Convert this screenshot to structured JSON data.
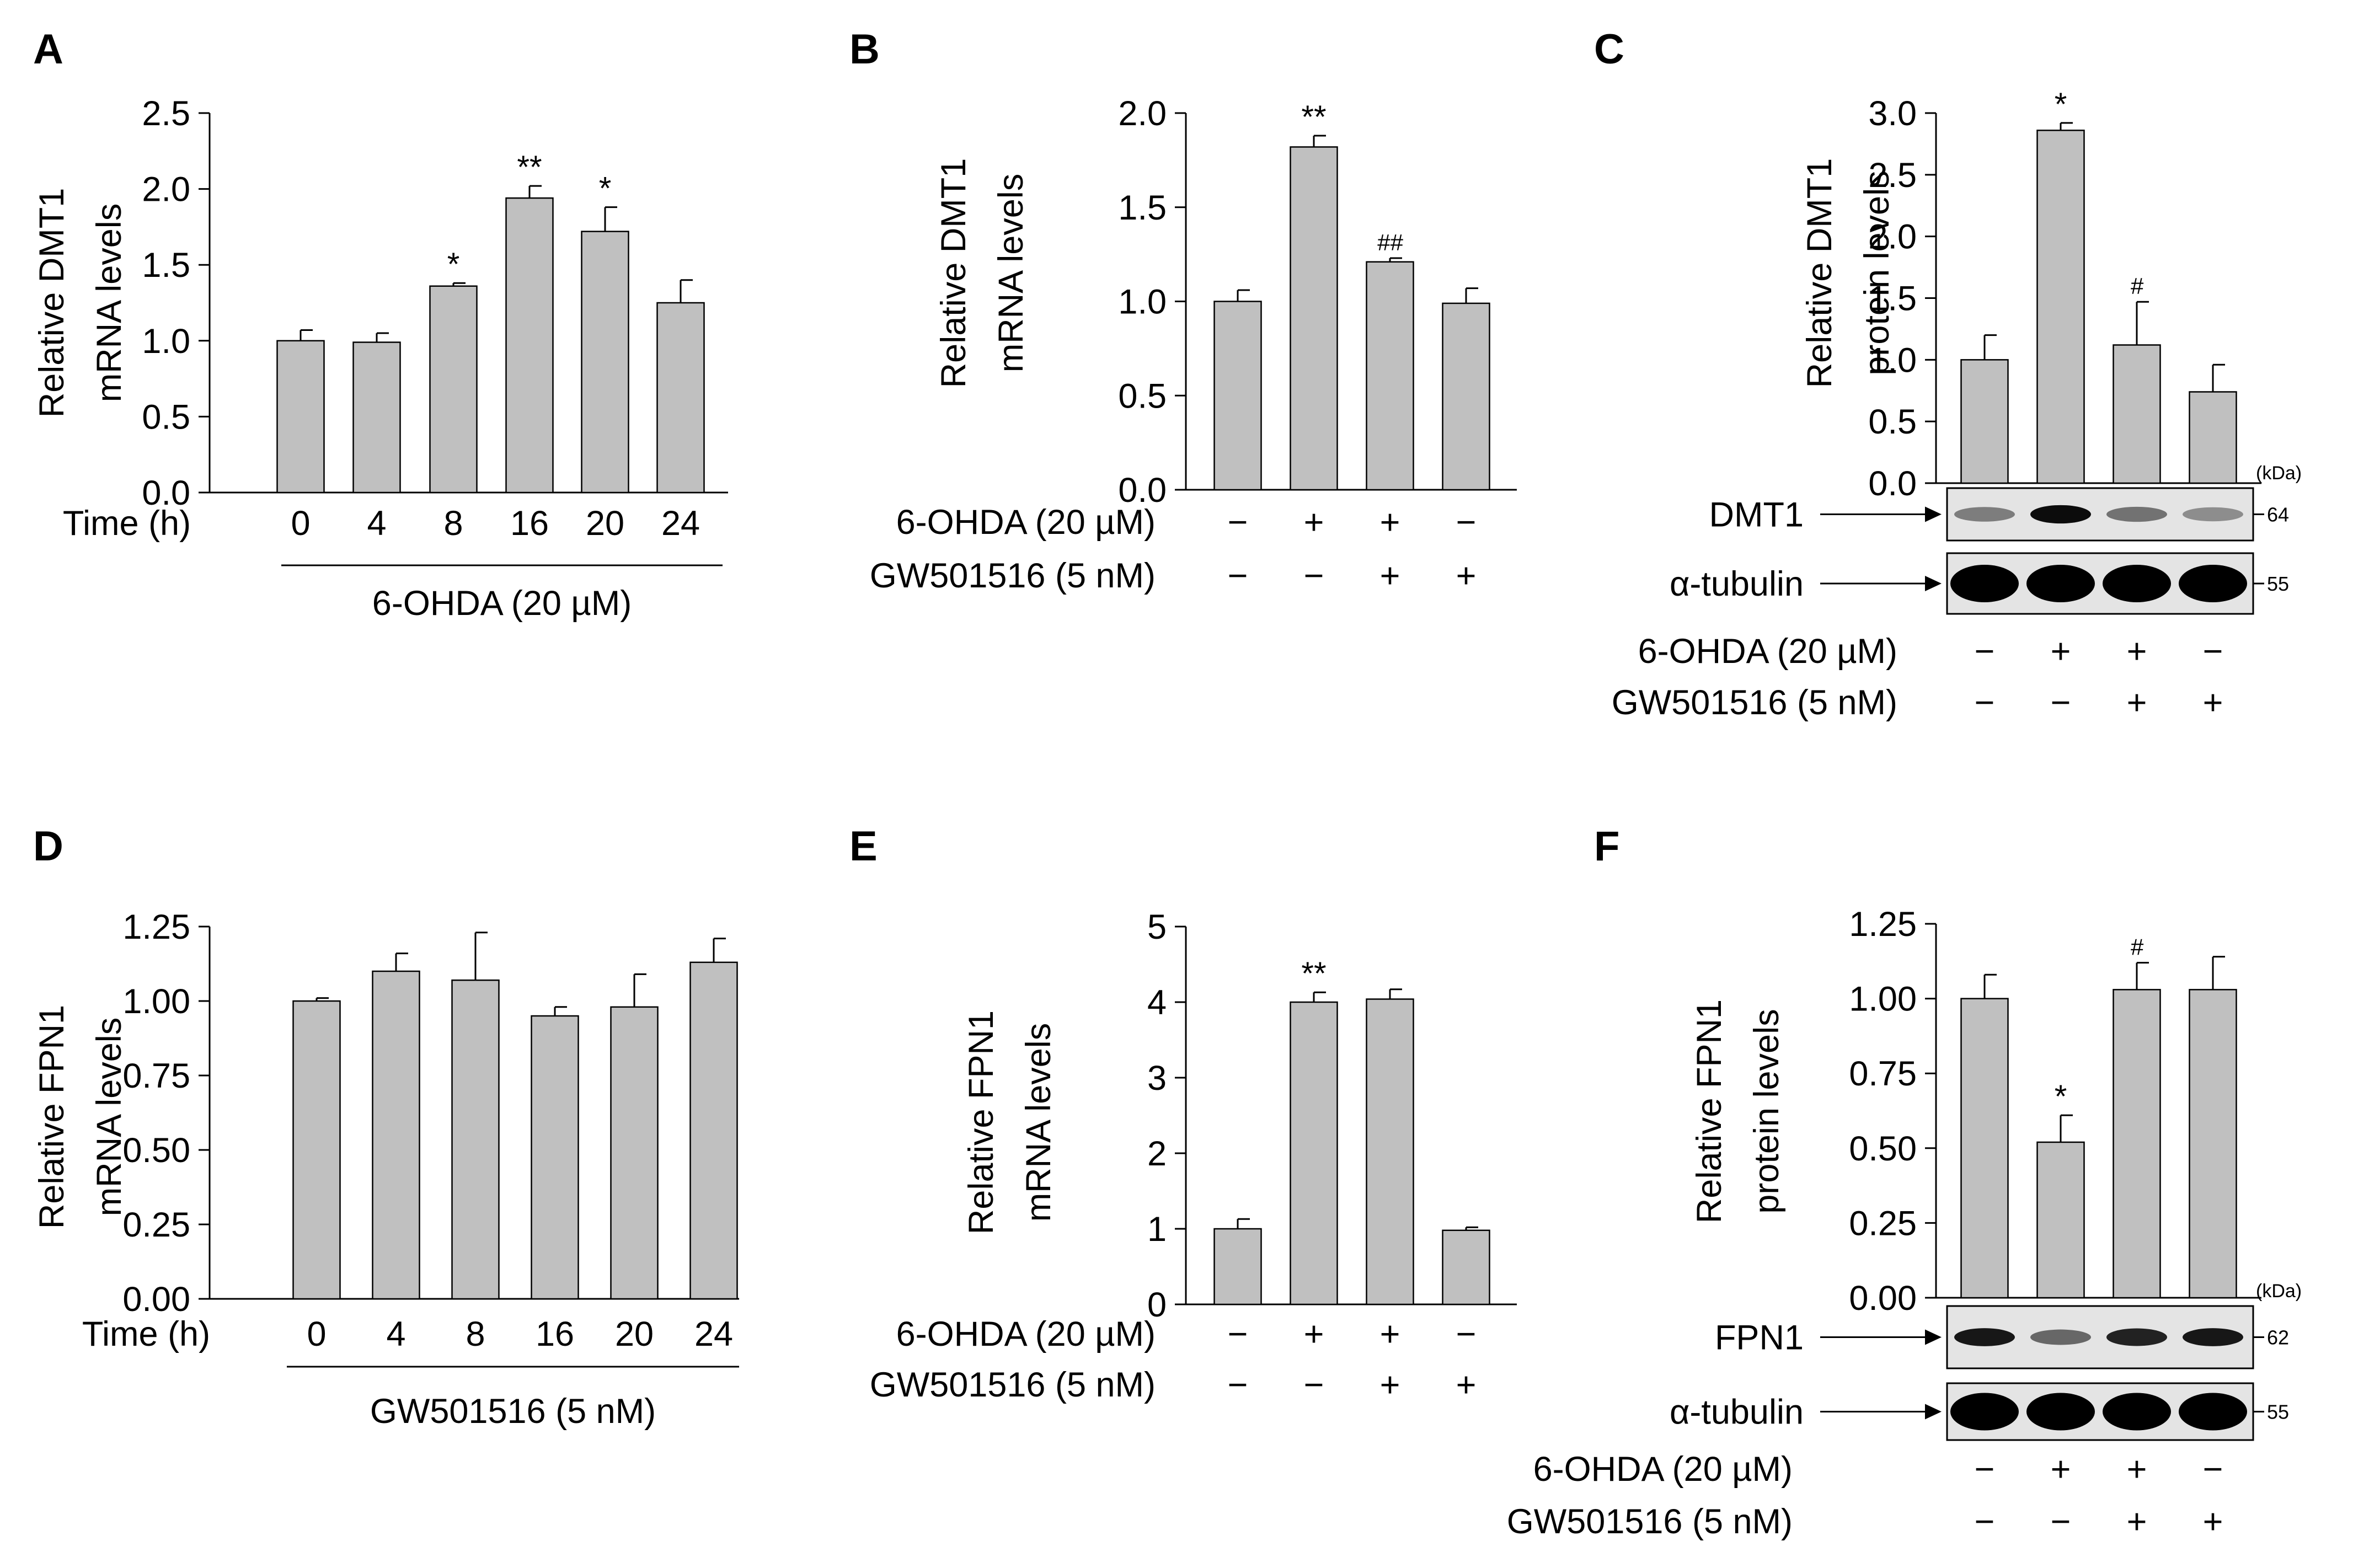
{
  "colors": {
    "bar_fill": "#c0c0c0",
    "stroke": "#000000",
    "blot_bg": "#e4e4e4"
  },
  "chart_data": [
    {
      "panel": "A",
      "type": "bar",
      "ylabel": [
        "Relative DMT1",
        "mRNA levels"
      ],
      "yticks": [
        "0.0",
        "0.5",
        "1.0",
        "1.5",
        "2.0",
        "2.5"
      ],
      "ylim": [
        0,
        2.5
      ],
      "categories": [
        "0",
        "4",
        "8",
        "16",
        "20",
        "24"
      ],
      "values": [
        1.0,
        0.99,
        1.36,
        1.94,
        1.72,
        1.25
      ],
      "errors": [
        0.07,
        0.06,
        0.02,
        0.08,
        0.16,
        0.15
      ],
      "annotations": [
        "",
        "",
        "*",
        "**",
        "*",
        ""
      ],
      "xaxis_title": "Time (h)",
      "xgroup_label": "6-OHDA (20 µM)"
    },
    {
      "panel": "B",
      "type": "bar",
      "ylabel": [
        "Relative DMT1",
        "mRNA levels"
      ],
      "yticks": [
        "0.0",
        "0.5",
        "1.0",
        "1.5",
        "2.0"
      ],
      "ylim": [
        0,
        2.0
      ],
      "values": [
        1.0,
        1.82,
        1.21,
        0.99
      ],
      "errors": [
        0.06,
        0.06,
        0.02,
        0.08
      ],
      "annotations": [
        "",
        "**",
        "##",
        ""
      ],
      "treatments": [
        {
          "label": "6-OHDA (20 µM)",
          "signs": [
            "−",
            "+",
            "+",
            "−"
          ]
        },
        {
          "label": "GW501516 (5 nM)",
          "signs": [
            "−",
            "−",
            "+",
            "+"
          ]
        }
      ]
    },
    {
      "panel": "C",
      "type": "bar",
      "ylabel": [
        "Relative DMT1",
        "protein levels"
      ],
      "yticks": [
        "0.0",
        "0.5",
        "1.0",
        "1.5",
        "2.0",
        "2.5",
        "3.0"
      ],
      "ylim": [
        0,
        3.0
      ],
      "values": [
        1.0,
        2.86,
        1.12,
        0.74
      ],
      "errors": [
        0.2,
        0.06,
        0.35,
        0.22
      ],
      "annotations": [
        "",
        "*",
        "#",
        ""
      ],
      "blots": [
        {
          "name": "DMT1",
          "kda": "64",
          "intensity": [
            0.45,
            0.95,
            0.5,
            0.38
          ]
        },
        {
          "name": "α-tubulin",
          "kda": "55",
          "intensity": [
            1,
            1,
            1,
            1
          ]
        }
      ],
      "kda_unit": "(kDa)",
      "treatments": [
        {
          "label": "6-OHDA (20 µM)",
          "signs": [
            "−",
            "+",
            "+",
            "−"
          ]
        },
        {
          "label": "GW501516 (5 nM)",
          "signs": [
            "−",
            "−",
            "+",
            "+"
          ]
        }
      ]
    },
    {
      "panel": "D",
      "type": "bar",
      "ylabel": [
        "Relative FPN1",
        "mRNA levels"
      ],
      "yticks": [
        "0.00",
        "0.25",
        "0.50",
        "0.75",
        "1.00",
        "1.25"
      ],
      "ylim": [
        0,
        1.25
      ],
      "categories": [
        "0",
        "4",
        "8",
        "16",
        "20",
        "24"
      ],
      "values": [
        1.0,
        1.1,
        1.07,
        0.95,
        0.98,
        1.13
      ],
      "errors": [
        0.01,
        0.06,
        0.16,
        0.03,
        0.11,
        0.08
      ],
      "annotations": [
        "",
        "",
        "",
        "",
        "",
        ""
      ],
      "xaxis_title": "Time (h)",
      "xgroup_label": "GW501516 (5 nM)"
    },
    {
      "panel": "E",
      "type": "bar",
      "ylabel": [
        "Relative FPN1",
        "mRNA levels"
      ],
      "yticks": [
        "0",
        "1",
        "2",
        "3",
        "4",
        "5"
      ],
      "ylim": [
        0,
        5
      ],
      "values": [
        1.0,
        4.0,
        4.04,
        0.98
      ],
      "errors": [
        0.13,
        0.13,
        0.13,
        0.04
      ],
      "annotations": [
        "",
        "**",
        "",
        ""
      ],
      "treatments": [
        {
          "label": "6-OHDA (20 µM)",
          "signs": [
            "−",
            "+",
            "+",
            "−"
          ]
        },
        {
          "label": "GW501516 (5 nM)",
          "signs": [
            "−",
            "−",
            "+",
            "+"
          ]
        }
      ]
    },
    {
      "panel": "F",
      "type": "bar",
      "ylabel": [
        "Relative FPN1",
        "protein levels"
      ],
      "yticks": [
        "0.00",
        "0.25",
        "0.50",
        "0.75",
        "1.00",
        "1.25"
      ],
      "ylim": [
        0,
        1.25
      ],
      "values": [
        1.0,
        0.52,
        1.03,
        1.03
      ],
      "errors": [
        0.08,
        0.09,
        0.09,
        0.11
      ],
      "annotations": [
        "",
        "*",
        "#",
        ""
      ],
      "blots": [
        {
          "name": "FPN1",
          "kda": "62",
          "intensity": [
            0.9,
            0.55,
            0.85,
            0.9
          ]
        },
        {
          "name": "α-tubulin",
          "kda": "55",
          "intensity": [
            1,
            1,
            1,
            1
          ]
        }
      ],
      "kda_unit": "(kDa)",
      "treatments": [
        {
          "label": "6-OHDA (20 µM)",
          "signs": [
            "−",
            "+",
            "+",
            "−"
          ]
        },
        {
          "label": "GW501516 (5 nM)",
          "signs": [
            "−",
            "−",
            "+",
            "+"
          ]
        }
      ]
    }
  ]
}
